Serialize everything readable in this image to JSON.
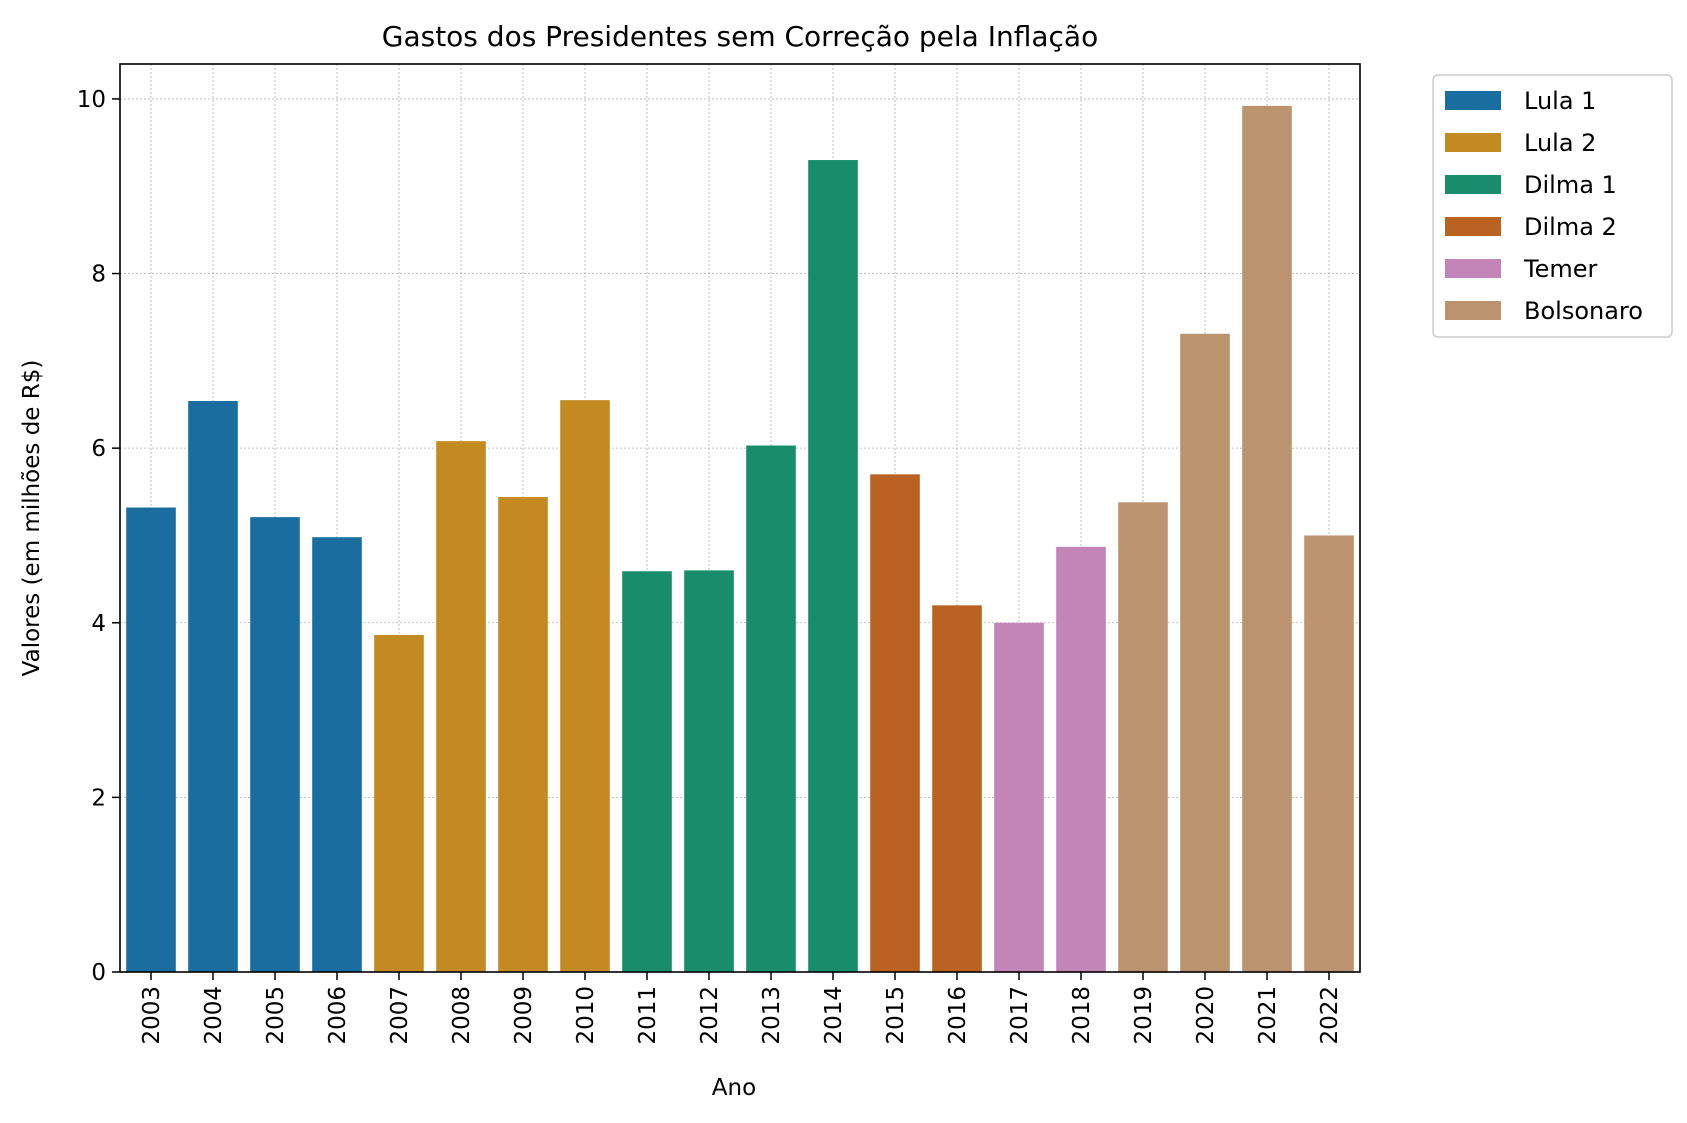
{
  "chart_data": {
    "type": "bar",
    "title": "Gastos dos Presidentes sem Correção pela Inflação",
    "xlabel": "Ano",
    "ylabel": "Valores (em milhões de R$)",
    "ylim": [
      0,
      10.4
    ],
    "yticks": [
      0,
      2,
      4,
      6,
      8,
      10
    ],
    "grid": true,
    "legend_position": "outside right, top",
    "categories": [
      "2003",
      "2004",
      "2005",
      "2006",
      "2007",
      "2008",
      "2009",
      "2010",
      "2011",
      "2012",
      "2013",
      "2014",
      "2015",
      "2016",
      "2017",
      "2018",
      "2019",
      "2020",
      "2021",
      "2022"
    ],
    "values": [
      5.32,
      6.54,
      5.21,
      4.98,
      3.86,
      6.08,
      5.44,
      6.55,
      4.59,
      4.6,
      6.03,
      9.3,
      5.7,
      4.2,
      4.0,
      4.87,
      5.38,
      7.31,
      9.92,
      5.0
    ],
    "groups": [
      "Lula 1",
      "Lula 1",
      "Lula 1",
      "Lula 1",
      "Lula 2",
      "Lula 2",
      "Lula 2",
      "Lula 2",
      "Dilma 1",
      "Dilma 1",
      "Dilma 1",
      "Dilma 1",
      "Dilma 2",
      "Dilma 2",
      "Temer",
      "Temer",
      "Bolsonaro",
      "Bolsonaro",
      "Bolsonaro",
      "Bolsonaro"
    ],
    "legend": [
      {
        "name": "Lula 1",
        "color": "#1a6e9f"
      },
      {
        "name": "Lula 2",
        "color": "#c48a22"
      },
      {
        "name": "Dilma 1",
        "color": "#178d6b"
      },
      {
        "name": "Dilma 2",
        "color": "#b96221"
      },
      {
        "name": "Temer",
        "color": "#c384b7"
      },
      {
        "name": "Bolsonaro",
        "color": "#bc936f"
      }
    ]
  }
}
